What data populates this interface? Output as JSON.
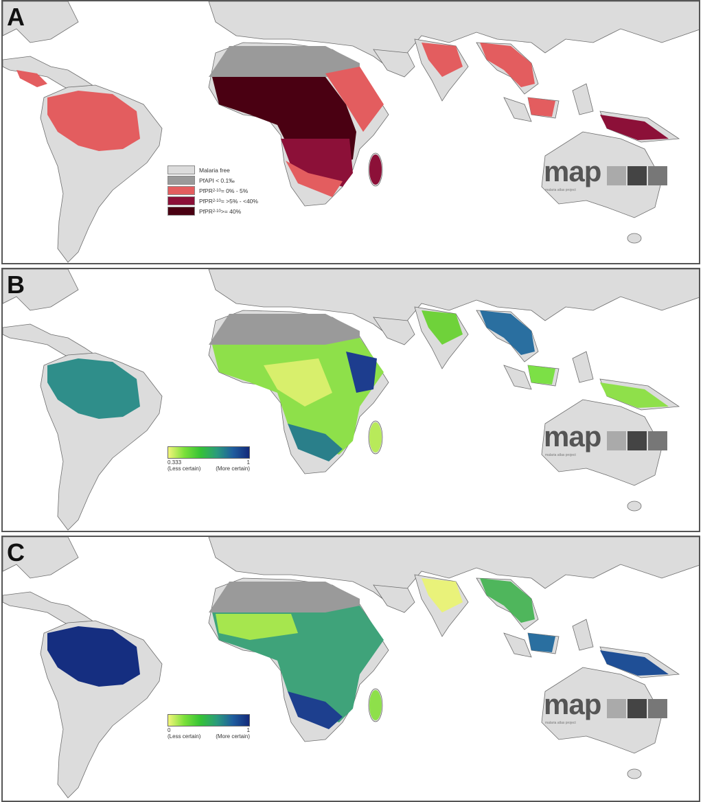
{
  "panels": [
    {
      "letter": "A",
      "legend": [
        {
          "label": "Malaria free",
          "sub": "",
          "rest": "",
          "color": "#dcdcdc"
        },
        {
          "label": "PfAPI < 0.1‰",
          "sub": "",
          "rest": "",
          "color": "#9a9a9a"
        },
        {
          "label": "PfPR",
          "sub": "2-10",
          "rest": " = 0% - 5%",
          "color": "#e35d5f"
        },
        {
          "label": "PfPR",
          "sub": "2-10",
          "rest": " = >5% - <40%",
          "color": "#8c1038"
        },
        {
          "label": "PfPR",
          "sub": "2-10",
          "rest": " >= 40%",
          "color": "#4a0012"
        }
      ]
    },
    {
      "letter": "B",
      "colorbar": {
        "min": "0.333",
        "max": "1",
        "min_note": "(Less certain)",
        "max_note": "(More certain)",
        "colors": [
          "#f2f57a",
          "#35c236",
          "#13297a"
        ]
      }
    },
    {
      "letter": "C",
      "colorbar": {
        "min": "0",
        "max": "1",
        "min_note": "(Less certain)",
        "max_note": "(More certain)",
        "colors": [
          "#f2f57a",
          "#35c236",
          "#13297a"
        ]
      }
    }
  ],
  "logo": {
    "text": "map",
    "tagline": "malaria atlas project"
  },
  "colors": {
    "land": "#dcdcdc",
    "border": "#6b6b6b",
    "ocean": "#ffffff"
  }
}
